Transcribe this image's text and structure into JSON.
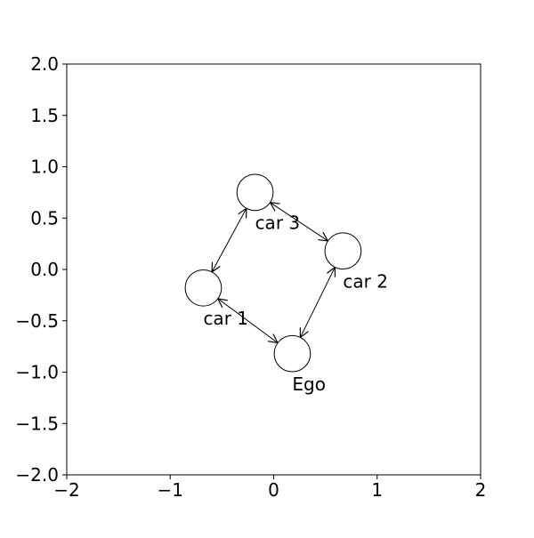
{
  "chart_data": {
    "type": "scatter",
    "title": "",
    "xlabel": "",
    "ylabel": "",
    "xlim": [
      -2,
      2
    ],
    "ylim": [
      -2,
      2
    ],
    "grid": false,
    "xticks": [
      -2,
      -1,
      0,
      1,
      2
    ],
    "xtick_labels": [
      "−2",
      "−1",
      "0",
      "1",
      "2"
    ],
    "yticks": [
      -2.0,
      -1.5,
      -1.0,
      -0.5,
      0.0,
      0.5,
      1.0,
      1.5,
      2.0
    ],
    "ytick_labels": [
      "−2.0",
      "−1.5",
      "−1.0",
      "−0.5",
      "0.0",
      "0.5",
      "1.0",
      "1.5",
      "2.0"
    ],
    "nodes": [
      {
        "id": "ego",
        "label": "Ego",
        "x": 0.18,
        "y": -0.82
      },
      {
        "id": "car1",
        "label": "car 1",
        "x": -0.68,
        "y": -0.18
      },
      {
        "id": "car2",
        "label": "car 2",
        "x": 0.67,
        "y": 0.18
      },
      {
        "id": "car3",
        "label": "car 3",
        "x": -0.18,
        "y": 0.75
      }
    ],
    "edges": [
      {
        "from": "ego",
        "to": "car2",
        "bidirectional": true
      },
      {
        "from": "car2",
        "to": "car3",
        "bidirectional": true
      },
      {
        "from": "car3",
        "to": "car1",
        "bidirectional": true
      },
      {
        "from": "car1",
        "to": "ego",
        "bidirectional": true
      }
    ],
    "node_radius": 0.175,
    "colors": {
      "line": "#000000",
      "fill": "#ffffff"
    }
  }
}
